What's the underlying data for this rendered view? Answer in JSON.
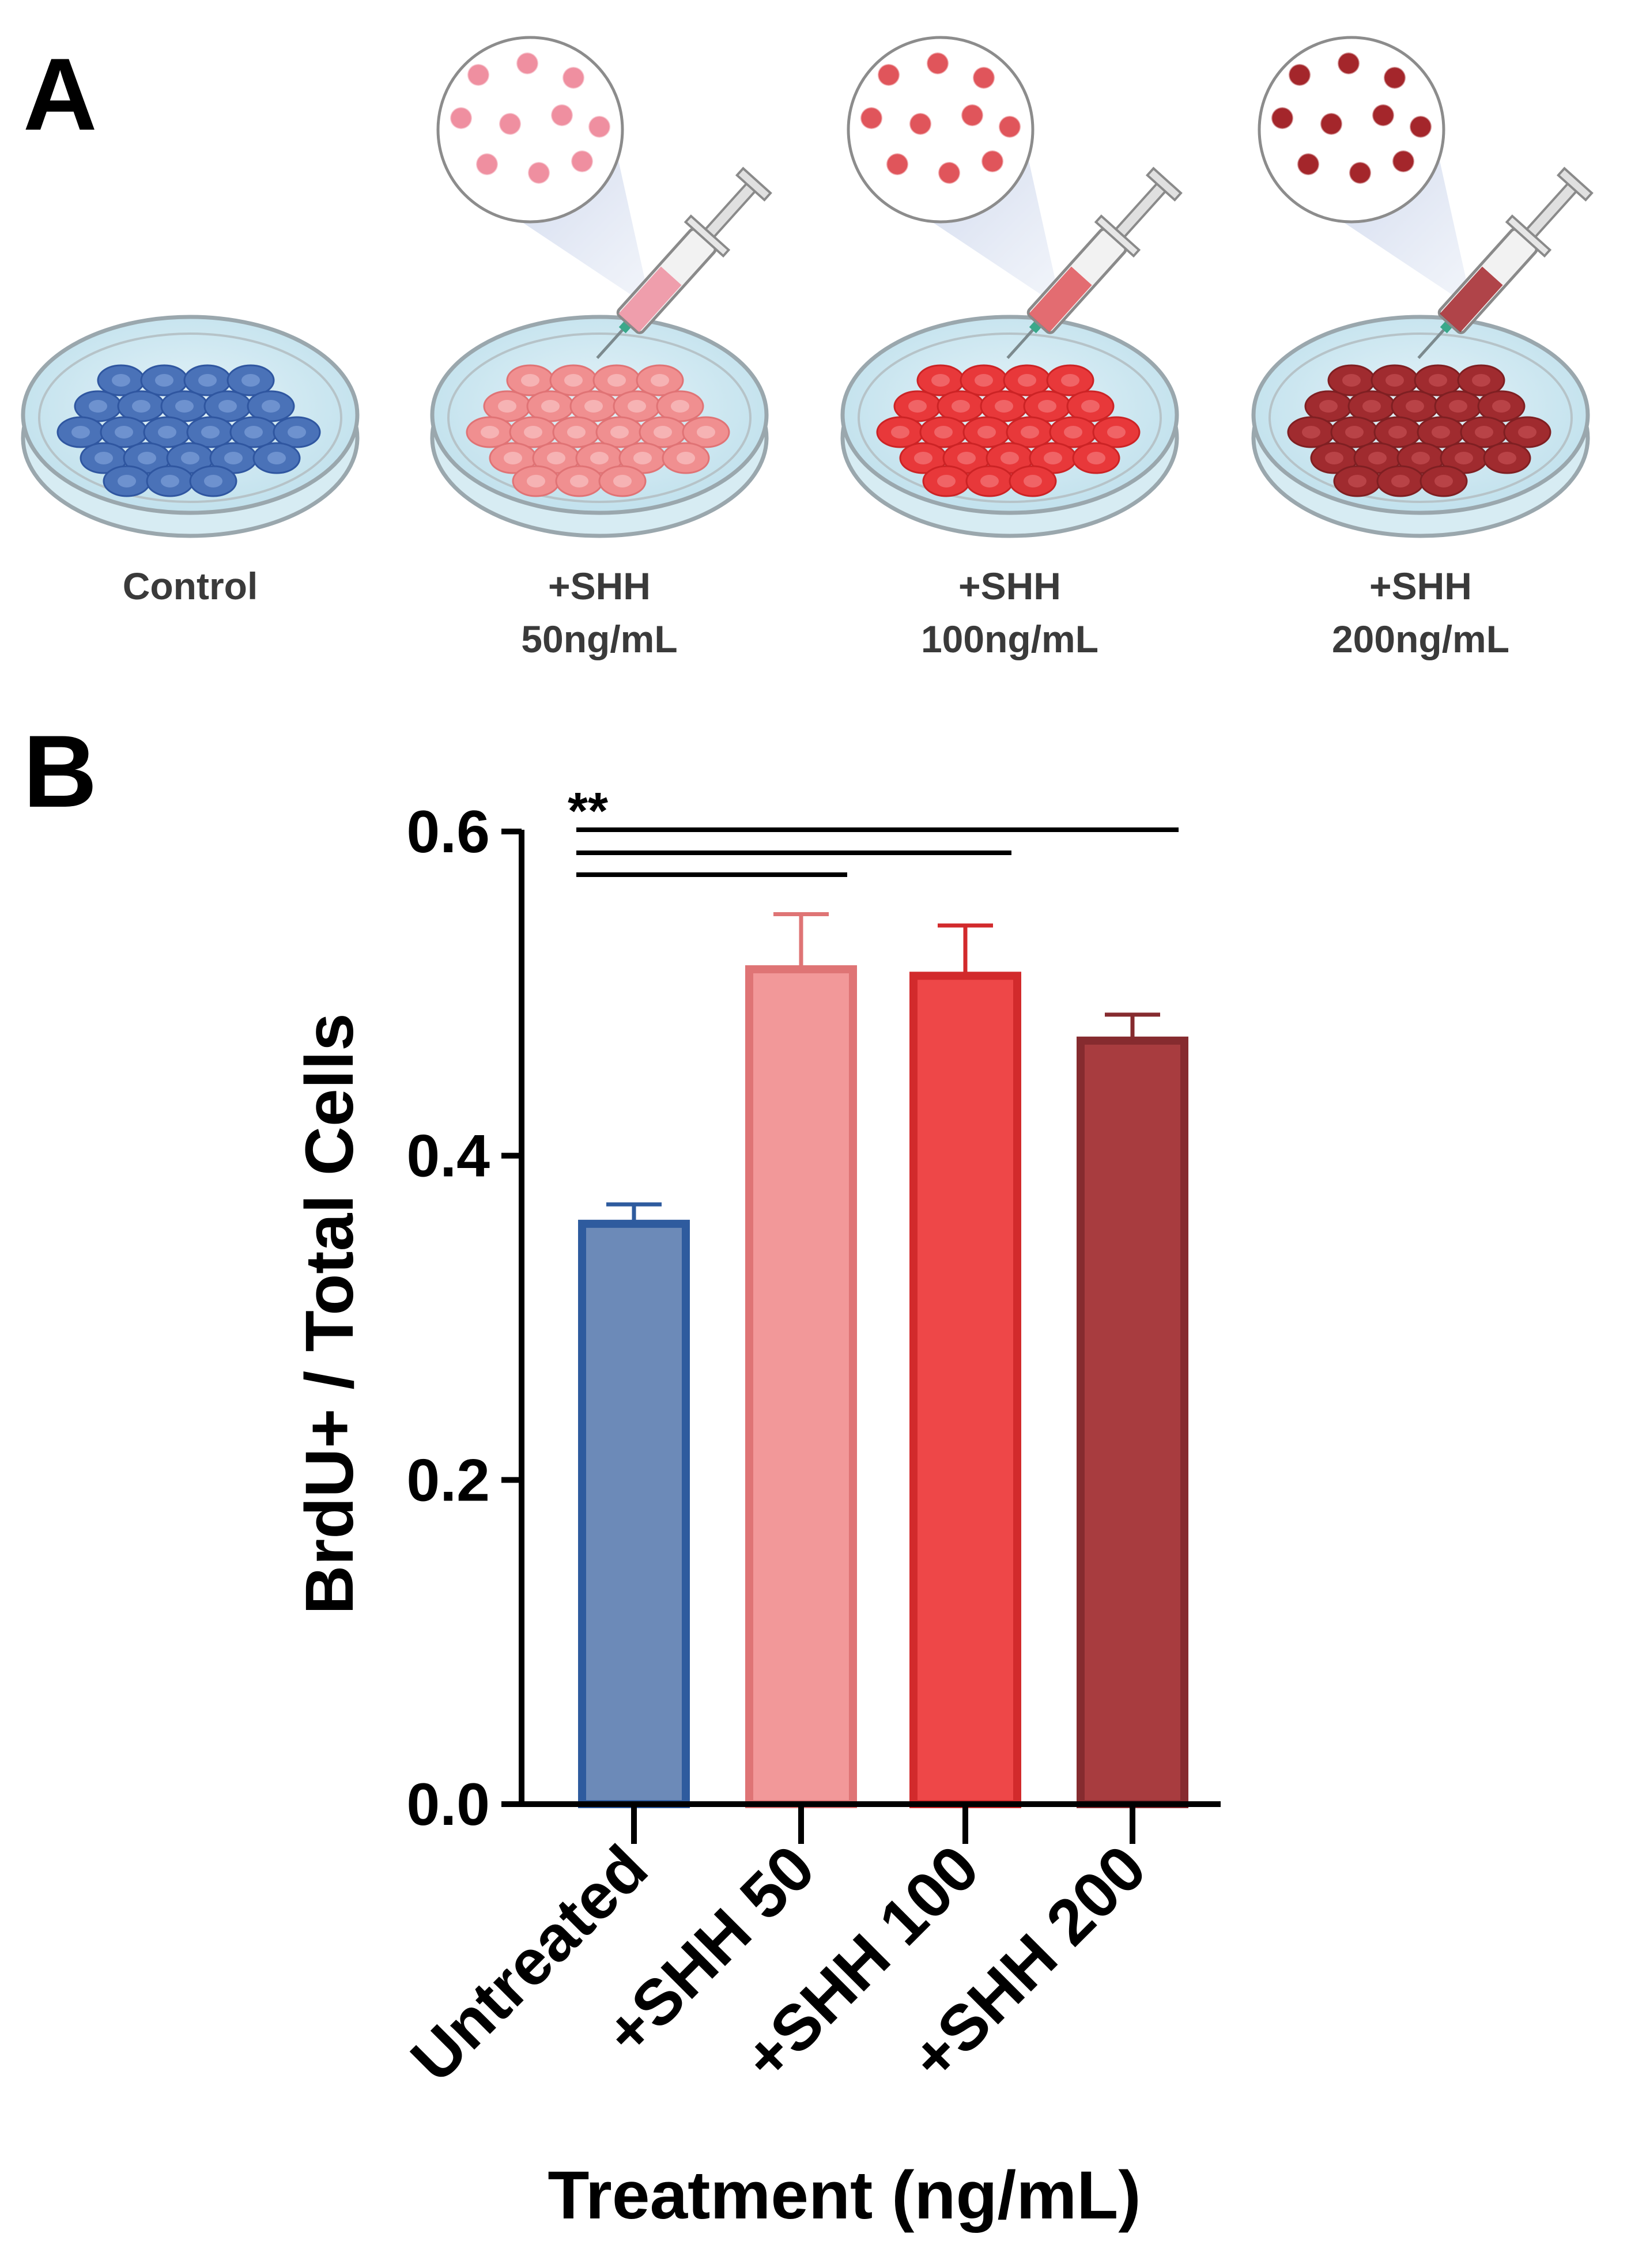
{
  "panel_a": {
    "letter": "A",
    "dishes": [
      {
        "line1": "Control",
        "line2": "",
        "cell_fill": "#4a72b8",
        "cell_stroke": "#2f56a0",
        "nucleus": "#6e92cf",
        "has_syringe": false,
        "dot_color": ""
      },
      {
        "line1": "+SHH",
        "line2": "50ng/mL",
        "cell_fill": "#f08f90",
        "cell_stroke": "#e07375",
        "nucleus": "#f6b3b4",
        "has_syringe": true,
        "dot_color": "#ef8fa0"
      },
      {
        "line1": "+SHH",
        "line2": "100ng/mL",
        "cell_fill": "#e8383a",
        "cell_stroke": "#cc2325",
        "nucleus": "#f06466",
        "has_syringe": true,
        "dot_color": "#e0555b"
      },
      {
        "line1": "+SHH",
        "line2": "200ng/mL",
        "cell_fill": "#a02b2f",
        "cell_stroke": "#7f1f22",
        "nucleus": "#b94347",
        "has_syringe": true,
        "dot_color": "#a4262b"
      }
    ]
  },
  "panel_b": {
    "letter": "B",
    "significance": "**"
  },
  "chart_data": {
    "type": "bar",
    "categories": [
      "Untreated",
      "+SHH 50",
      "+SHH 100",
      "+SHH 200"
    ],
    "values": [
      0.358,
      0.515,
      0.511,
      0.471
    ],
    "errors": [
      0.012,
      0.034,
      0.031,
      0.016
    ],
    "bar_colors": [
      "#6c8ab8",
      "#f29899",
      "#ee4748",
      "#a83c3f"
    ],
    "bar_edge_colors": [
      "#2e5b9e",
      "#df7475",
      "#d22a2c",
      "#862b2f"
    ],
    "ylabel": "BrdU+ / Total Cells",
    "xlabel": "Treatment (ng/mL)",
    "ylim": [
      0.0,
      0.6
    ],
    "yticks": [
      0.0,
      0.2,
      0.4,
      0.6
    ],
    "ytick_labels": [
      "0.0",
      "0.2",
      "0.4",
      "0.6"
    ],
    "comparisons": [
      {
        "from": "Untreated",
        "to": "+SHH 50"
      },
      {
        "from": "Untreated",
        "to": "+SHH 100"
      },
      {
        "from": "Untreated",
        "to": "+SHH 200"
      }
    ]
  }
}
